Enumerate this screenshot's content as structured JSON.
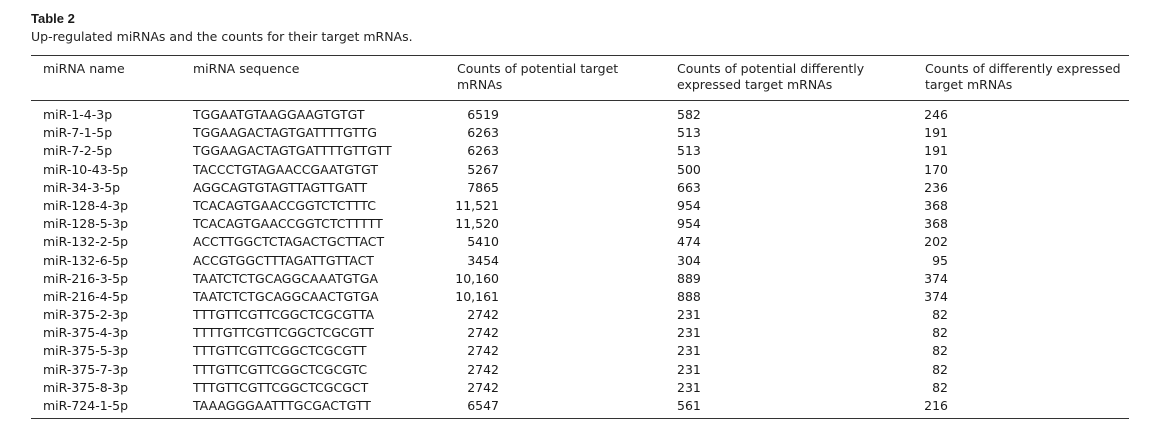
{
  "table": {
    "label": "Table 2",
    "caption": "Up-regulated miRNAs and the counts for their target mRNAs.",
    "headers": {
      "name": "miRNA name",
      "sequence": "miRNA sequence",
      "potential_line1": "Counts of potential target",
      "potential_line2": "mRNAs",
      "diff_line1": "Counts of potential differently",
      "diff_line2": "expressed target mRNAs",
      "expr_line1": "Counts of differently expressed",
      "expr_line2": "target mRNAs"
    },
    "rows": [
      {
        "name": "miR-1-4-3p",
        "sequence": "TGGAATGTAAGGAAGTGTGT",
        "potential": "6519",
        "diff": "582",
        "expr": "246"
      },
      {
        "name": "miR-7-1-5p",
        "sequence": "TGGAAGACTAGTGATTTTGTTG",
        "potential": "6263",
        "diff": "513",
        "expr": "191"
      },
      {
        "name": "miR-7-2-5p",
        "sequence": "TGGAAGACTAGTGATTTTGTTGTT",
        "potential": "6263",
        "diff": "513",
        "expr": "191"
      },
      {
        "name": "miR-10-43-5p",
        "sequence": "TACCCTGTAGAACCGAATGTGT",
        "potential": "5267",
        "diff": "500",
        "expr": "170"
      },
      {
        "name": "miR-34-3-5p",
        "sequence": "AGGCAGTGTAGTTAGTTGATT",
        "potential": "7865",
        "diff": "663",
        "expr": "236"
      },
      {
        "name": "miR-128-4-3p",
        "sequence": "TCACAGTGAACCGGTCTCTTTC",
        "potential": "11,521",
        "diff": "954",
        "expr": "368"
      },
      {
        "name": "miR-128-5-3p",
        "sequence": "TCACAGTGAACCGGTCTCTTTTT",
        "potential": "11,520",
        "diff": "954",
        "expr": "368"
      },
      {
        "name": "miR-132-2-5p",
        "sequence": "ACCTTGGCTCTAGACTGCTTACT",
        "potential": "5410",
        "diff": "474",
        "expr": "202"
      },
      {
        "name": "miR-132-6-5p",
        "sequence": "ACCGTGGCTTTAGATTGTTACT",
        "potential": "3454",
        "diff": "304",
        "expr": "95"
      },
      {
        "name": "miR-216-3-5p",
        "sequence": "TAATCTCTGCAGGCAAATGTGA",
        "potential": "10,160",
        "diff": "889",
        "expr": "374"
      },
      {
        "name": "miR-216-4-5p",
        "sequence": "TAATCTCTGCAGGCAACTGTGA",
        "potential": "10,161",
        "diff": "888",
        "expr": "374"
      },
      {
        "name": "miR-375-2-3p",
        "sequence": "TTTGTTCGTTCGGCTCGCGTTA",
        "potential": "2742",
        "diff": "231",
        "expr": "82"
      },
      {
        "name": "miR-375-4-3p",
        "sequence": "TTTTGTTCGTTCGGCTCGCGTT",
        "potential": "2742",
        "diff": "231",
        "expr": "82"
      },
      {
        "name": "miR-375-5-3p",
        "sequence": "TTTGTTCGTTCGGCTCGCGTT",
        "potential": "2742",
        "diff": "231",
        "expr": "82"
      },
      {
        "name": "miR-375-7-3p",
        "sequence": "TTTGTTCGTTCGGCTCGCGTC",
        "potential": "2742",
        "diff": "231",
        "expr": "82"
      },
      {
        "name": "miR-375-8-3p",
        "sequence": "TTTGTTCGTTCGGCTCGCGCT",
        "potential": "2742",
        "diff": "231",
        "expr": "82"
      },
      {
        "name": "miR-724-1-5p",
        "sequence": "TAAAGGGAATTTGCGACTGTT",
        "potential": "6547",
        "diff": "561",
        "expr": "216"
      }
    ]
  }
}
